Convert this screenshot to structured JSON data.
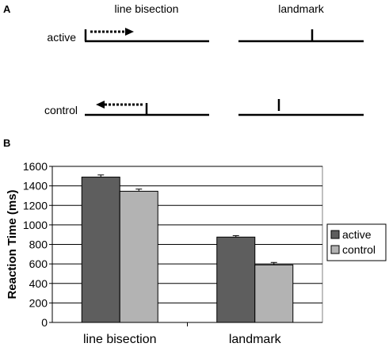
{
  "panel_a": {
    "label": "A",
    "col_headers": [
      "line bisection",
      "landmark"
    ],
    "row_labels": [
      "active",
      "control"
    ]
  },
  "panel_b": {
    "label": "B"
  },
  "colors": {
    "active": "#5e5e5e",
    "control": "#b3b3b3",
    "axis": "#000000",
    "grid": "#000000"
  },
  "chart_data": {
    "type": "bar",
    "categories": [
      "line bisection",
      "landmark"
    ],
    "series": [
      {
        "name": "active",
        "values": [
          1490,
          875
        ],
        "errors": [
          22,
          15
        ]
      },
      {
        "name": "control",
        "values": [
          1345,
          590
        ],
        "errors": [
          22,
          25
        ]
      }
    ],
    "ylabel": "Reaction Time (ms)",
    "xlabel": "",
    "ylim": [
      0,
      1600
    ],
    "yticks": [
      0,
      200,
      400,
      600,
      800,
      1000,
      1200,
      1400,
      1600
    ],
    "grid": true,
    "legend_position": "right"
  }
}
